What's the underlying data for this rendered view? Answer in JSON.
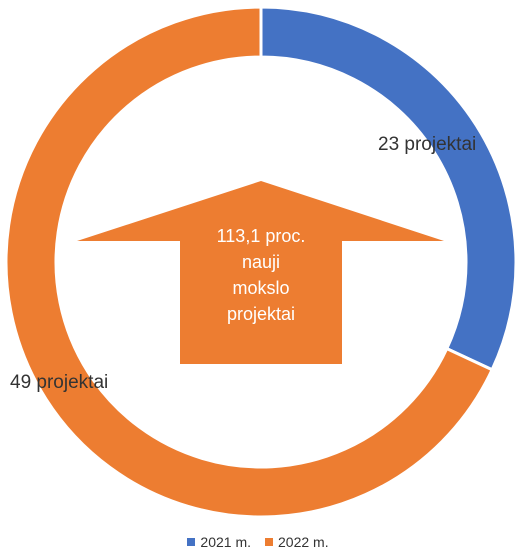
{
  "chart_data": {
    "type": "pie",
    "variant": "donut",
    "series": [
      {
        "name": "2021 m.",
        "value": 23,
        "label": "23 projektai",
        "color": "#4472C4"
      },
      {
        "name": "2022 m.",
        "value": 49,
        "label": "49 projektai",
        "color": "#ED7D31"
      }
    ],
    "annotation": {
      "shape": "up-arrow",
      "color": "#ED7D31",
      "lines": [
        "113,1 proc.",
        "nauji",
        "mokslo",
        "projektai"
      ]
    },
    "legend_position": "bottom"
  }
}
